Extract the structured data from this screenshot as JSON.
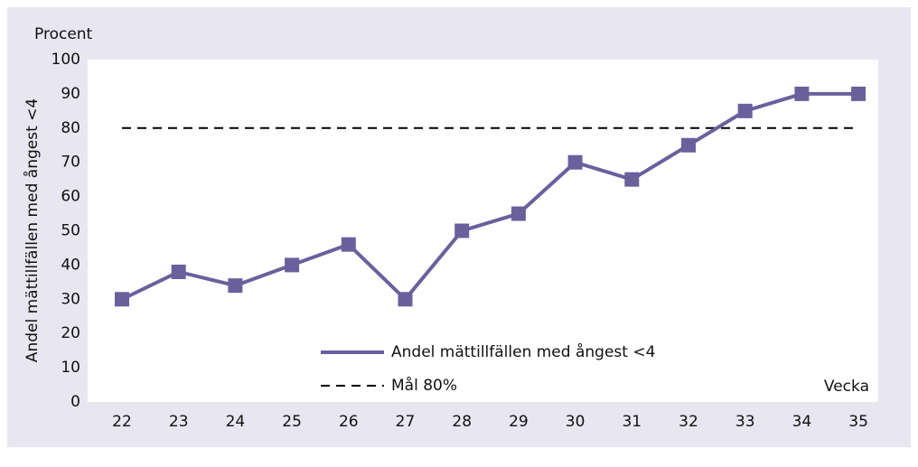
{
  "chart_data": {
    "type": "line",
    "y_label_top": "Procent",
    "y_label": "Andel mättillfällen med ångest <4",
    "x_label": "Vecka",
    "categories": [
      "22",
      "23",
      "24",
      "25",
      "26",
      "27",
      "28",
      "29",
      "30",
      "31",
      "32",
      "33",
      "34",
      "35"
    ],
    "series": [
      {
        "name": "Andel mättillfällen med ångest <4",
        "color": "#6a609c",
        "values": [
          30,
          38,
          34,
          40,
          46,
          30,
          50,
          55,
          70,
          65,
          75,
          85,
          90,
          90
        ]
      }
    ],
    "target": {
      "name": "Mål 80%",
      "value": 80,
      "color": "#000000"
    },
    "ylim": [
      0,
      100
    ],
    "yticks": [
      0,
      10,
      20,
      30,
      40,
      50,
      60,
      70,
      80,
      90,
      100
    ],
    "grid": false
  }
}
